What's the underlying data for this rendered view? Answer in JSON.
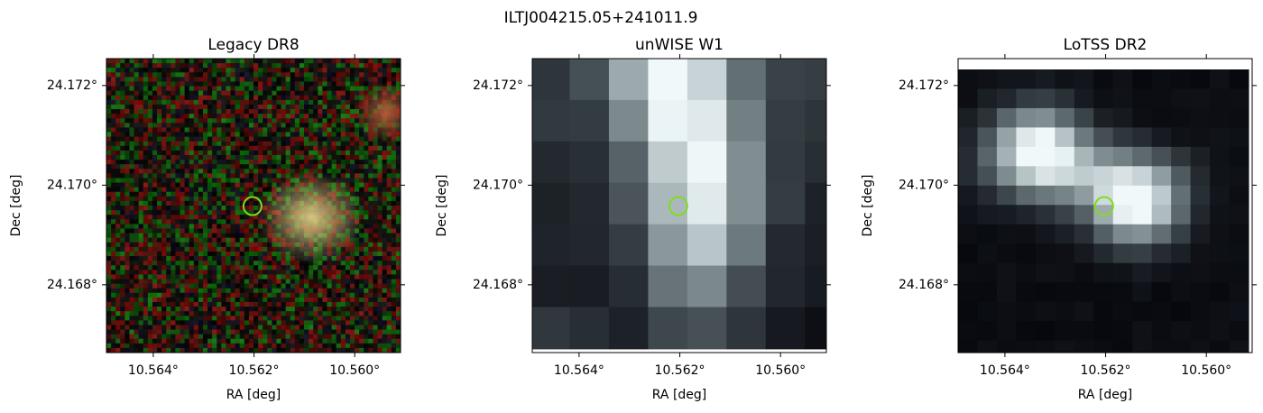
{
  "title": "ILTJ004215.05+241011.9",
  "chart_data": [
    {
      "type": "image",
      "title": "Legacy DR8",
      "xlabel": "RA [deg]",
      "ylabel": "Dec [deg]",
      "xlim": [
        10.56493,
        10.55909
      ],
      "ylim": [
        24.16664,
        24.17254
      ],
      "xticks": [
        {
          "value": 10.564,
          "label": "10.564°"
        },
        {
          "value": 10.562,
          "label": "10.562°"
        },
        {
          "value": 10.56,
          "label": "10.560°"
        }
      ],
      "yticks": [
        {
          "value": 24.168,
          "label": "24.168°"
        },
        {
          "value": 24.17,
          "label": "24.170°"
        },
        {
          "value": 24.172,
          "label": "24.172°"
        }
      ],
      "marker": {
        "x": 10.56203,
        "y": 24.16958,
        "color": "#7fdc1e"
      }
    },
    {
      "type": "image",
      "title": "unWISE W1",
      "xlabel": "RA [deg]",
      "ylabel": "Dec [deg]",
      "xlim": [
        10.56493,
        10.55909
      ],
      "ylim": [
        24.16664,
        24.17254
      ],
      "xticks": [
        {
          "value": 10.564,
          "label": "10.564°"
        },
        {
          "value": 10.562,
          "label": "10.562°"
        },
        {
          "value": 10.56,
          "label": "10.560°"
        }
      ],
      "yticks": [
        {
          "value": 24.168,
          "label": "24.168°"
        },
        {
          "value": 24.17,
          "label": "24.170°"
        },
        {
          "value": 24.172,
          "label": "24.172°"
        }
      ],
      "marker": {
        "x": 10.56203,
        "y": 24.16958,
        "color": "#7fdc1e"
      }
    },
    {
      "type": "image",
      "title": "LoTSS DR2",
      "xlabel": "RA [deg]",
      "ylabel": "Dec [deg]",
      "xlim": [
        10.56493,
        10.55909
      ],
      "ylim": [
        24.16664,
        24.17254
      ],
      "xticks": [
        {
          "value": 10.564,
          "label": "10.564°"
        },
        {
          "value": 10.562,
          "label": "10.562°"
        },
        {
          "value": 10.56,
          "label": "10.560°"
        }
      ],
      "yticks": [
        {
          "value": 24.168,
          "label": "24.168°"
        },
        {
          "value": 24.17,
          "label": "24.170°"
        },
        {
          "value": 24.172,
          "label": "24.172°"
        }
      ],
      "marker": {
        "x": 10.56203,
        "y": 24.16958,
        "color": "#7fdc1e"
      }
    }
  ]
}
